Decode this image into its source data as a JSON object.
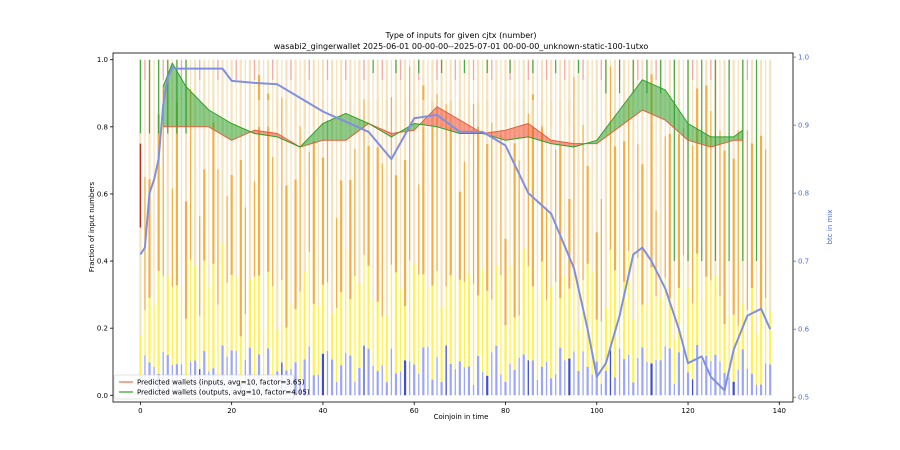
{
  "chart_data": {
    "type": "line",
    "title": "Type of inputs for given cjtx (number)",
    "subtitle": "wasabi2_gingerwallet 2025-06-01 00-00-00--2025-07-01 00-00-00_unknown-static-100-1utxo",
    "xlabel": "Coinjoin in time",
    "ylabel": "Fraction of input numbers",
    "y2label": "btc in mix",
    "xlim": [
      -6,
      143
    ],
    "ylim": [
      -0.02,
      1.02
    ],
    "y2lim": [
      0.493,
      1.006
    ],
    "x_ticks": [
      0,
      20,
      40,
      60,
      80,
      100,
      120,
      140
    ],
    "y_ticks": [
      0.0,
      0.2,
      0.4,
      0.6,
      0.8,
      1.0
    ],
    "y2_ticks": [
      0.5,
      0.6,
      0.7,
      0.8,
      0.9,
      1.0
    ],
    "grid": false,
    "legend_position": "lower-left",
    "legend": [
      {
        "label": "Predicted wallets (inputs, avg=10, factor=3.65)",
        "color": "#ee6a50"
      },
      {
        "label": "Predicted wallets (outputs, avg=10, factor=4.05)",
        "color": "#2ca02c"
      }
    ],
    "background_bars": {
      "x_start": 0,
      "x_end": 138,
      "colors": {
        "blue": "#8c96f5",
        "yellow": "#ffee33",
        "orange": "#f5a020",
        "beige": "#f5deb3",
        "pink": "#f4a0a0",
        "green": "#2ca02c"
      }
    },
    "series": [
      {
        "name": "Predicted wallets (inputs, avg=10, factor=3.65)",
        "color": "#e06040",
        "x": [
          5,
          10,
          15,
          20,
          25,
          30,
          35,
          40,
          45,
          50,
          55,
          60,
          65,
          70,
          75,
          80,
          85,
          90,
          95,
          100,
          105,
          110,
          115,
          120,
          125,
          130,
          132
        ],
        "values": [
          0.8,
          0.8,
          0.8,
          0.76,
          0.79,
          0.78,
          0.74,
          0.76,
          0.76,
          0.81,
          0.78,
          0.79,
          0.86,
          0.82,
          0.78,
          0.79,
          0.81,
          0.76,
          0.75,
          0.75,
          0.8,
          0.85,
          0.82,
          0.76,
          0.74,
          0.76,
          0.76
        ]
      },
      {
        "name": "Predicted wallets (outputs, avg=10, factor=4.05)",
        "color": "#2ca02c",
        "x": [
          5,
          7,
          10,
          15,
          20,
          25,
          30,
          35,
          40,
          45,
          50,
          55,
          60,
          65,
          70,
          75,
          80,
          85,
          90,
          95,
          100,
          105,
          110,
          115,
          120,
          125,
          130,
          132
        ],
        "values": [
          0.92,
          0.99,
          0.92,
          0.85,
          0.81,
          0.78,
          0.77,
          0.74,
          0.81,
          0.84,
          0.81,
          0.77,
          0.81,
          0.8,
          0.78,
          0.78,
          0.76,
          0.77,
          0.75,
          0.74,
          0.76,
          0.85,
          0.94,
          0.91,
          0.81,
          0.77,
          0.77,
          0.79
        ]
      },
      {
        "name": "btc in mix",
        "axis": "right",
        "color": "#8090e0",
        "x": [
          0,
          1,
          2,
          3,
          4,
          5,
          6,
          7,
          8,
          10,
          15,
          18,
          20,
          25,
          30,
          35,
          40,
          45,
          50,
          55,
          60,
          65,
          70,
          75,
          80,
          85,
          90,
          95,
          98,
          100,
          102,
          105,
          108,
          110,
          112,
          115,
          118,
          120,
          123,
          125,
          128,
          130,
          133,
          136,
          138
        ],
        "values": [
          0.71,
          0.72,
          0.8,
          0.82,
          0.85,
          0.93,
          0.97,
          0.985,
          0.983,
          0.983,
          0.983,
          0.983,
          0.965,
          0.962,
          0.96,
          0.94,
          0.92,
          0.905,
          0.89,
          0.85,
          0.91,
          0.915,
          0.89,
          0.89,
          0.87,
          0.8,
          0.77,
          0.69,
          0.6,
          0.53,
          0.55,
          0.62,
          0.71,
          0.72,
          0.7,
          0.66,
          0.6,
          0.55,
          0.56,
          0.53,
          0.51,
          0.57,
          0.62,
          0.63,
          0.6
        ]
      }
    ]
  }
}
